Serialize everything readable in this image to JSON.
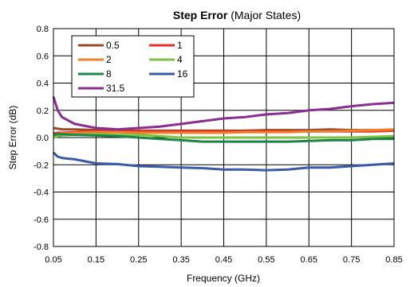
{
  "chart_data": {
    "type": "line",
    "title_bold": "Step Error",
    "title_rest": " (Major States)",
    "xlabel": "Frequency (GHz)",
    "ylabel": "Step Error (dB)",
    "xlim": [
      0.05,
      0.85
    ],
    "ylim": [
      -0.8,
      0.8
    ],
    "xticks": [
      "0.05",
      "0.15",
      "0.25",
      "0.35",
      "0.45",
      "0.55",
      "0.65",
      "0.75",
      "0.85"
    ],
    "yticks": [
      "0.8",
      "0.6",
      "0.4",
      "0.2",
      "0.0",
      "-0.2",
      "-0.4",
      "-0.6",
      "-0.8"
    ],
    "grid": true,
    "legend_position": "top-left",
    "x": [
      0.05,
      0.06,
      0.07,
      0.1,
      0.15,
      0.2,
      0.25,
      0.3,
      0.35,
      0.4,
      0.45,
      0.5,
      0.55,
      0.6,
      0.65,
      0.7,
      0.75,
      0.8,
      0.85
    ],
    "series": [
      {
        "name": "0.5",
        "color": "#9C4A2E",
        "values": [
          0.07,
          0.065,
          0.06,
          0.06,
          0.055,
          0.05,
          0.05,
          0.05,
          0.05,
          0.05,
          0.05,
          0.05,
          0.055,
          0.055,
          0.055,
          0.06,
          0.055,
          0.055,
          0.055
        ]
      },
      {
        "name": "1",
        "color": "#E8312B",
        "values": [
          0.03,
          0.035,
          0.035,
          0.04,
          0.045,
          0.045,
          0.045,
          0.045,
          0.045,
          0.045,
          0.045,
          0.045,
          0.045,
          0.045,
          0.045,
          0.045,
          0.045,
          0.045,
          0.05
        ]
      },
      {
        "name": "2",
        "color": "#F07F2A",
        "values": [
          0.02,
          0.025,
          0.03,
          0.035,
          0.04,
          0.04,
          0.035,
          0.035,
          0.035,
          0.035,
          0.035,
          0.04,
          0.04,
          0.04,
          0.045,
          0.045,
          0.05,
          0.055,
          0.06
        ]
      },
      {
        "name": "4",
        "color": "#7DC242",
        "values": [
          0.0,
          0.01,
          0.015,
          0.02,
          0.025,
          0.02,
          0.02,
          0.01,
          0.0,
          0.0,
          0.0,
          0.0,
          0.0,
          0.0,
          0.0,
          0.0,
          0.0,
          0.005,
          0.01
        ]
      },
      {
        "name": "8",
        "color": "#1E8449",
        "values": [
          0.02,
          0.025,
          0.025,
          0.02,
          0.015,
          0.01,
          0.0,
          -0.01,
          -0.02,
          -0.03,
          -0.03,
          -0.03,
          -0.03,
          -0.03,
          -0.025,
          -0.02,
          -0.02,
          -0.01,
          -0.01
        ]
      },
      {
        "name": "16",
        "color": "#3A5BA7",
        "values": [
          -0.11,
          -0.14,
          -0.15,
          -0.16,
          -0.19,
          -0.195,
          -0.21,
          -0.215,
          -0.22,
          -0.225,
          -0.235,
          -0.235,
          -0.24,
          -0.235,
          -0.22,
          -0.22,
          -0.21,
          -0.2,
          -0.19
        ]
      },
      {
        "name": "31.5",
        "color": "#8C2D91",
        "values": [
          0.3,
          0.2,
          0.15,
          0.1,
          0.07,
          0.06,
          0.07,
          0.08,
          0.1,
          0.12,
          0.14,
          0.15,
          0.17,
          0.18,
          0.2,
          0.21,
          0.23,
          0.245,
          0.255
        ]
      }
    ]
  }
}
